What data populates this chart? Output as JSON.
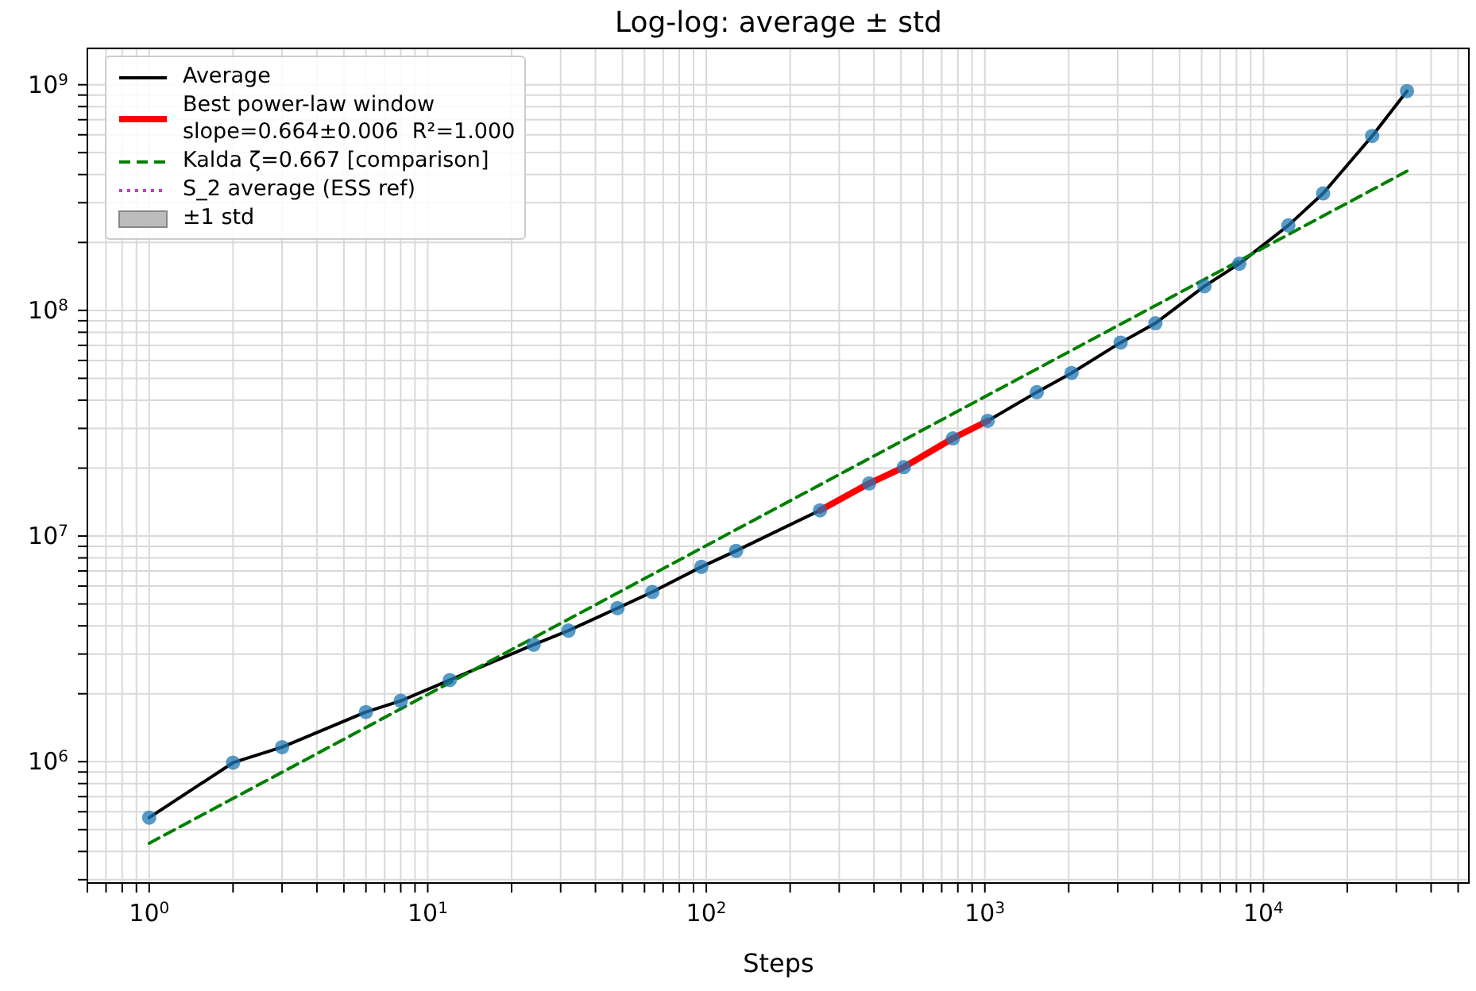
{
  "chart_data": {
    "type": "line",
    "title": "Log-log: average ± std",
    "xlabel": "Steps",
    "log": "xy",
    "grid": true,
    "legend": "top left",
    "x": [
      1,
      2,
      3,
      6,
      8,
      12,
      24,
      32,
      48,
      64,
      96,
      128,
      256,
      384,
      512,
      768,
      1024,
      1536,
      2048,
      3072,
      4096,
      6144,
      8192,
      12288,
      16384,
      24576,
      32768
    ],
    "xlim": [
      0.6,
      55000
    ],
    "ylim": [
      290000,
      1460000000
    ],
    "xticks": [
      {
        "value": 0.6,
        "label": null
      },
      {
        "value": 0.7,
        "label": null
      },
      {
        "value": 0.8,
        "label": null
      },
      {
        "value": 0.9,
        "label": null
      },
      {
        "value": 1,
        "label": "10$^{0}$"
      },
      {
        "value": 2,
        "label": null
      },
      {
        "value": 3,
        "label": null
      },
      {
        "value": 4,
        "label": null
      },
      {
        "value": 5,
        "label": null
      },
      {
        "value": 6,
        "label": null
      },
      {
        "value": 7,
        "label": null
      },
      {
        "value": 8,
        "label": null
      },
      {
        "value": 9,
        "label": null
      },
      {
        "value": 10,
        "label": "10$^{1}$"
      },
      {
        "value": 20,
        "label": null
      },
      {
        "value": 30,
        "label": null
      },
      {
        "value": 40,
        "label": null
      },
      {
        "value": 50,
        "label": null
      },
      {
        "value": 60,
        "label": null
      },
      {
        "value": 70,
        "label": null
      },
      {
        "value": 80,
        "label": null
      },
      {
        "value": 90,
        "label": null
      },
      {
        "value": 100,
        "label": "10$^{2}$"
      },
      {
        "value": 200,
        "label": null
      },
      {
        "value": 300,
        "label": null
      },
      {
        "value": 400,
        "label": null
      },
      {
        "value": 500,
        "label": null
      },
      {
        "value": 600,
        "label": null
      },
      {
        "value": 700,
        "label": null
      },
      {
        "value": 800,
        "label": null
      },
      {
        "value": 900,
        "label": null
      },
      {
        "value": 1000,
        "label": "10$^{3}$"
      },
      {
        "value": 2000,
        "label": null
      },
      {
        "value": 3000,
        "label": null
      },
      {
        "value": 4000,
        "label": null
      },
      {
        "value": 5000,
        "label": null
      },
      {
        "value": 6000,
        "label": null
      },
      {
        "value": 7000,
        "label": null
      },
      {
        "value": 8000,
        "label": null
      },
      {
        "value": 9000,
        "label": null
      },
      {
        "value": 10000,
        "label": "10$^{4}$"
      },
      {
        "value": 20000,
        "label": null
      },
      {
        "value": 30000,
        "label": null
      },
      {
        "value": 40000,
        "label": null
      },
      {
        "value": 50000,
        "label": null
      }
    ],
    "yticks": [
      {
        "value": 300000,
        "label": null
      },
      {
        "value": 400000,
        "label": null
      },
      {
        "value": 500000,
        "label": null
      },
      {
        "value": 600000,
        "label": null
      },
      {
        "value": 700000,
        "label": null
      },
      {
        "value": 800000,
        "label": null
      },
      {
        "value": 900000,
        "label": null
      },
      {
        "value": 1000000,
        "label": "10$^{6}$"
      },
      {
        "value": 2000000,
        "label": null
      },
      {
        "value": 3000000,
        "label": null
      },
      {
        "value": 4000000,
        "label": null
      },
      {
        "value": 5000000,
        "label": null
      },
      {
        "value": 6000000,
        "label": null
      },
      {
        "value": 7000000,
        "label": null
      },
      {
        "value": 8000000,
        "label": null
      },
      {
        "value": 9000000,
        "label": null
      },
      {
        "value": 10000000,
        "label": "10$^{7}$"
      },
      {
        "value": 20000000,
        "label": null
      },
      {
        "value": 30000000,
        "label": null
      },
      {
        "value": 40000000,
        "label": null
      },
      {
        "value": 50000000,
        "label": null
      },
      {
        "value": 60000000,
        "label": null
      },
      {
        "value": 70000000,
        "label": null
      },
      {
        "value": 80000000,
        "label": null
      },
      {
        "value": 90000000,
        "label": null
      },
      {
        "value": 100000000,
        "label": "10$^{8}$"
      },
      {
        "value": 200000000,
        "label": null
      },
      {
        "value": 300000000,
        "label": null
      },
      {
        "value": 400000000,
        "label": null
      },
      {
        "value": 500000000,
        "label": null
      },
      {
        "value": 600000000,
        "label": null
      },
      {
        "value": 700000000,
        "label": null
      },
      {
        "value": 800000000,
        "label": null
      },
      {
        "value": 900000000,
        "label": null
      },
      {
        "value": 1000000000,
        "label": "10$^{9}$"
      }
    ],
    "series": [
      {
        "name": "Average",
        "color": "#000000",
        "line_style": "solid",
        "values": [
          565000,
          990000,
          1160000,
          1660000,
          1860000,
          2300000,
          3300000,
          3810000,
          4790000,
          5650000,
          7300000,
          8600000,
          13000000,
          17100000,
          20200000,
          27100000,
          32400000,
          43400000,
          52800000,
          72000000,
          87700000,
          128000000,
          161000000,
          238000000,
          330000000,
          593000000,
          937000000
        ]
      },
      {
        "name": "Best power-law window\nslope=0.664±0.006  R²=1.000",
        "color": "#ff0000",
        "line_style": "solid",
        "x": [
          256,
          384,
          512,
          768,
          1024
        ],
        "values": [
          13000000,
          17100000,
          20200000,
          27100000,
          32400000
        ]
      },
      {
        "name": "Kalda ζ=0.667 [comparison]",
        "color": "#008000",
        "line_style": "dashed",
        "x": [
          1,
          32768
        ],
        "values": [
          435000,
          414000000
        ]
      },
      {
        "name": "S_2 average (ESS ref)",
        "color": "#bf40bf",
        "line_style": "dotted",
        "values": [
          null,
          null,
          null,
          null,
          null,
          null,
          null,
          null,
          null,
          null,
          null,
          null,
          null,
          null,
          null,
          null,
          null,
          null,
          null,
          null,
          null,
          null,
          null,
          null,
          null,
          null,
          null
        ]
      },
      {
        "name": "±1 std",
        "type": "area",
        "color": "#a0a0a0",
        "values": [
          null,
          null,
          null,
          null,
          null,
          null,
          null,
          null,
          null,
          null,
          null,
          null,
          null,
          null,
          null,
          null,
          null,
          null,
          null,
          null,
          null,
          null,
          null,
          null,
          null,
          null,
          null
        ],
        "lower": [
          null,
          null,
          null,
          null,
          null,
          null,
          null,
          null,
          null,
          null,
          null,
          null,
          null,
          null,
          null,
          null,
          null,
          null,
          null,
          null,
          null,
          null,
          null,
          null,
          null,
          null,
          null
        ],
        "upper": [
          null,
          null,
          null,
          null,
          null,
          null,
          null,
          null,
          null,
          null,
          null,
          null,
          null,
          null,
          null,
          null,
          null,
          null,
          null,
          null,
          null,
          null,
          null,
          null,
          null,
          null,
          null
        ]
      },
      {
        "type": "scatter",
        "color": "#1f77b4",
        "marker": "circle",
        "values": [
          565000,
          990000,
          1160000,
          1660000,
          1860000,
          2300000,
          3300000,
          3810000,
          4790000,
          5650000,
          7300000,
          8600000,
          13000000,
          17100000,
          20200000,
          27100000,
          32400000,
          43400000,
          52800000,
          72000000,
          87700000,
          128000000,
          161000000,
          238000000,
          330000000,
          593000000,
          937000000
        ]
      }
    ]
  }
}
